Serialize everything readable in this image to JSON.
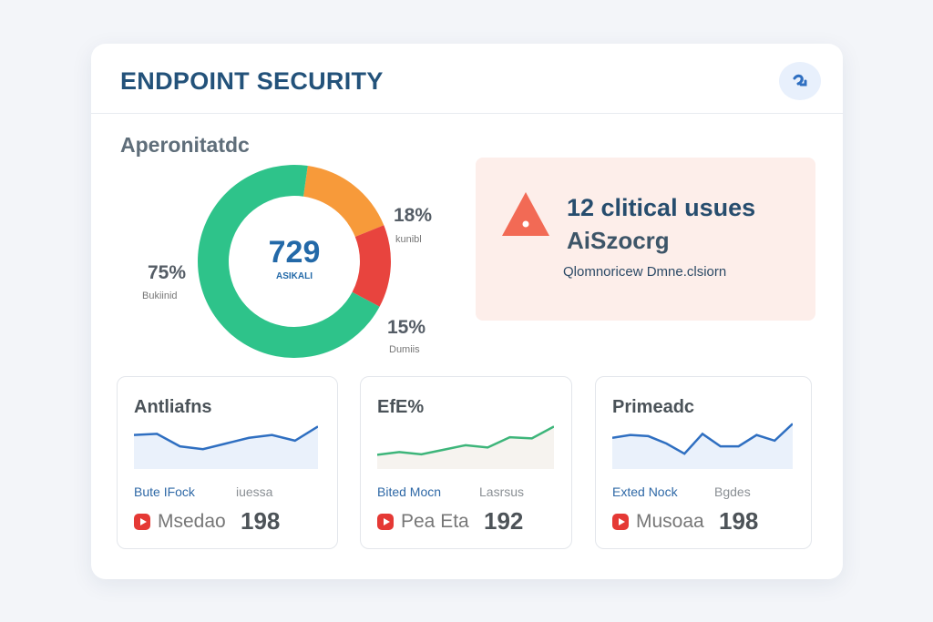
{
  "header": {
    "title": "ENDPOINT SECURITY",
    "action_icon": "redo-arrow-icon"
  },
  "overview": {
    "title": "Aperonitatdc",
    "total": "729",
    "total_label": "ASIKALI",
    "segments": [
      {
        "pct": "75%",
        "value": 75,
        "label": "Bukiinid",
        "color": "#2ec38a"
      },
      {
        "pct": "18%",
        "value": 18,
        "label": "kunibl",
        "color": "#f79a3a"
      },
      {
        "pct": "15%",
        "value": 15,
        "label": "Dumiis",
        "color": "#e8443e"
      }
    ]
  },
  "alert": {
    "icon": "warning-triangle-icon",
    "line1": "12 clitical usues",
    "line2": "AiSzocrg",
    "line3": "Qlomnoricew Dmne.clsiorn",
    "color": "#f26a55",
    "bg": "#fdeeea"
  },
  "cards": [
    {
      "title": "Antliafns",
      "key": "Bute IFock",
      "key2": "iuessa",
      "label": "Msedao",
      "value": "198",
      "line_color": "#2f6fc1",
      "accent": "#3db57a",
      "points": [
        6,
        6.2,
        4,
        3.5,
        4.5,
        5.5,
        6,
        5,
        7.5
      ]
    },
    {
      "title": "EfE%",
      "key": "Bited Mocn",
      "key2": "Lasrsus",
      "label": "Pea Eta",
      "value": "192",
      "line_color": "#3db57a",
      "accent": "#3db57a",
      "points": [
        2.5,
        3,
        2.6,
        3.4,
        4.2,
        3.8,
        5.6,
        5.4,
        7.5
      ]
    },
    {
      "title": "Primeadc",
      "key": "Exted Nock",
      "key2": "Bgdes",
      "label": "Musoaa",
      "value": "198",
      "line_color": "#2f6fc1",
      "accent": "#2f6fc1",
      "points": [
        5.5,
        6,
        5.8,
        4.5,
        2.7,
        6.2,
        4,
        4,
        6,
        5,
        8
      ]
    }
  ]
}
